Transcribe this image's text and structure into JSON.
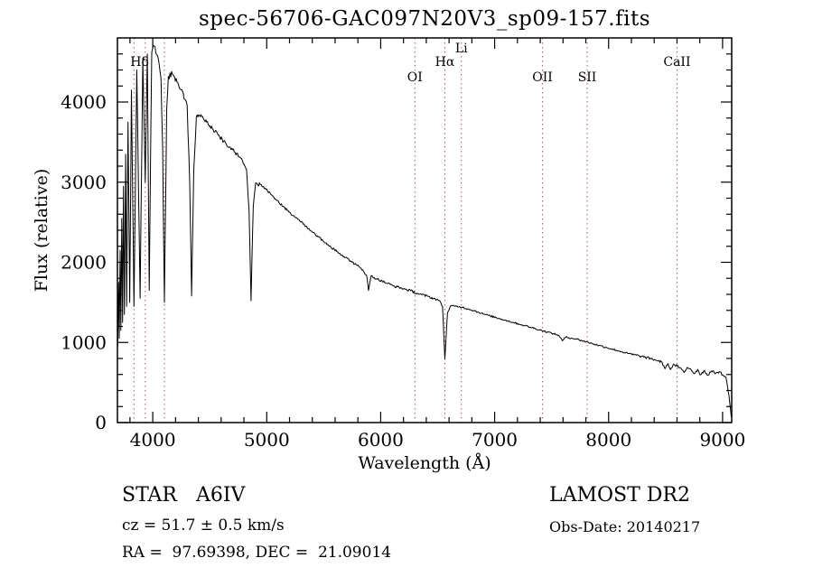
{
  "title": "spec-56706-GAC097N20V3_sp09-157.fits",
  "axes": {
    "xlabel": "Wavelength (Å)",
    "ylabel": "Flux (relative)"
  },
  "footer": {
    "classification": "STAR   A6IV",
    "cz": "cz = 51.7 ± 0.5 km/s",
    "ra_dec": "RA =  97.69398, DEC =  21.09014",
    "survey": "LAMOST DR2",
    "obs_date": "Obs-Date: 20140217"
  },
  "chart_data": {
    "type": "line",
    "title": "spec-56706-GAC097N20V3_sp09-157.fits",
    "xlabel": "Wavelength (Å)",
    "ylabel": "Flux (relative)",
    "xlim": [
      3690,
      9080
    ],
    "ylim": [
      0,
      4800
    ],
    "x_ticks": [
      4000,
      5000,
      6000,
      7000,
      8000,
      9000
    ],
    "y_ticks": [
      0,
      1000,
      2000,
      3000,
      4000
    ],
    "x_minor_step": 200,
    "y_minor_step": 200,
    "grid": false,
    "legend": "none",
    "line_color": "#000000",
    "marker_color": "#a05a5a",
    "marker_label_color": "#1a1a1a",
    "line_markers": [
      {
        "wavelength": 3835,
        "label": "",
        "row": 1
      },
      {
        "wavelength": 3934,
        "label": "",
        "row": 1
      },
      {
        "wavelength": 4102,
        "label": "Hδ",
        "label_wavelength": 3885,
        "row": 1
      },
      {
        "wavelength": 6300,
        "label": "OI",
        "row": 2
      },
      {
        "wavelength": 6563,
        "label": "Hα",
        "row": 1
      },
      {
        "wavelength": 6708,
        "label": "Li",
        "row": 0
      },
      {
        "wavelength": 7420,
        "label": "OII",
        "row": 2
      },
      {
        "wavelength": 7812,
        "label": "SII",
        "row": 2
      },
      {
        "wavelength": 8600,
        "label": "CaII",
        "row": 1
      }
    ],
    "noise_profile": [
      [
        4350,
        50
      ],
      [
        5000,
        24
      ],
      [
        6500,
        15
      ],
      [
        8200,
        11
      ],
      [
        9100,
        15
      ]
    ],
    "series": [
      {
        "name": "flux",
        "points": [
          [
            3692,
            950
          ],
          [
            3700,
            1750
          ],
          [
            3706,
            1050
          ],
          [
            3714,
            2150
          ],
          [
            3720,
            1150
          ],
          [
            3728,
            2550
          ],
          [
            3735,
            1250
          ],
          [
            3743,
            2950
          ],
          [
            3751,
            1350
          ],
          [
            3762,
            3350
          ],
          [
            3771,
            1450
          ],
          [
            3783,
            3750
          ],
          [
            3798,
            1500
          ],
          [
            3813,
            4150
          ],
          [
            3835,
            1450
          ],
          [
            3860,
            4400
          ],
          [
            3889,
            1550
          ],
          [
            3913,
            4550
          ],
          [
            3934,
            3000
          ],
          [
            3952,
            4600
          ],
          [
            3969,
            1650
          ],
          [
            3991,
            4620
          ],
          [
            4012,
            4700
          ],
          [
            4042,
            4580
          ],
          [
            4072,
            4300
          ],
          [
            4087,
            3400
          ],
          [
            4102,
            1500
          ],
          [
            4122,
            3900
          ],
          [
            4137,
            4320
          ],
          [
            4172,
            4350
          ],
          [
            4212,
            4250
          ],
          [
            4262,
            4130
          ],
          [
            4302,
            3960
          ],
          [
            4324,
            3000
          ],
          [
            4341,
            1580
          ],
          [
            4360,
            3150
          ],
          [
            4383,
            3820
          ],
          [
            4423,
            3840
          ],
          [
            4473,
            3750
          ],
          [
            4523,
            3670
          ],
          [
            4573,
            3590
          ],
          [
            4623,
            3510
          ],
          [
            4673,
            3440
          ],
          [
            4723,
            3370
          ],
          [
            4773,
            3300
          ],
          [
            4823,
            3160
          ],
          [
            4845,
            2650
          ],
          [
            4862,
            1520
          ],
          [
            4882,
            2700
          ],
          [
            4903,
            2990
          ],
          [
            4943,
            2970
          ],
          [
            4993,
            2910
          ],
          [
            5043,
            2840
          ],
          [
            5093,
            2770
          ],
          [
            5143,
            2700
          ],
          [
            5193,
            2630
          ],
          [
            5243,
            2570
          ],
          [
            5293,
            2510
          ],
          [
            5343,
            2450
          ],
          [
            5393,
            2390
          ],
          [
            5443,
            2330
          ],
          [
            5493,
            2270
          ],
          [
            5543,
            2210
          ],
          [
            5593,
            2160
          ],
          [
            5643,
            2110
          ],
          [
            5693,
            2060
          ],
          [
            5743,
            2010
          ],
          [
            5793,
            1960
          ],
          [
            5843,
            1905
          ],
          [
            5876,
            1840
          ],
          [
            5893,
            1650
          ],
          [
            5916,
            1830
          ],
          [
            5963,
            1795
          ],
          [
            6013,
            1765
          ],
          [
            6063,
            1735
          ],
          [
            6113,
            1705
          ],
          [
            6163,
            1685
          ],
          [
            6213,
            1665
          ],
          [
            6263,
            1645
          ],
          [
            6313,
            1615
          ],
          [
            6363,
            1595
          ],
          [
            6413,
            1575
          ],
          [
            6463,
            1550
          ],
          [
            6513,
            1525
          ],
          [
            6543,
            1450
          ],
          [
            6563,
            790
          ],
          [
            6586,
            1370
          ],
          [
            6613,
            1455
          ],
          [
            6663,
            1450
          ],
          [
            6713,
            1440
          ],
          [
            6763,
            1420
          ],
          [
            6813,
            1400
          ],
          [
            6863,
            1375
          ],
          [
            6913,
            1350
          ],
          [
            6963,
            1330
          ],
          [
            7013,
            1310
          ],
          [
            7063,
            1290
          ],
          [
            7113,
            1270
          ],
          [
            7163,
            1250
          ],
          [
            7213,
            1230
          ],
          [
            7263,
            1210
          ],
          [
            7313,
            1190
          ],
          [
            7363,
            1170
          ],
          [
            7413,
            1150
          ],
          [
            7463,
            1130
          ],
          [
            7513,
            1110
          ],
          [
            7563,
            1090
          ],
          [
            7594,
            1020
          ],
          [
            7623,
            1065
          ],
          [
            7673,
            1055
          ],
          [
            7723,
            1040
          ],
          [
            7773,
            1020
          ],
          [
            7823,
            1000
          ],
          [
            7873,
            980
          ],
          [
            7923,
            960
          ],
          [
            7973,
            940
          ],
          [
            8023,
            920
          ],
          [
            8073,
            900
          ],
          [
            8123,
            880
          ],
          [
            8173,
            862
          ],
          [
            8223,
            846
          ],
          [
            8273,
            830
          ],
          [
            8323,
            814
          ],
          [
            8373,
            796
          ],
          [
            8423,
            776
          ],
          [
            8463,
            756
          ],
          [
            8498,
            675
          ],
          [
            8521,
            735
          ],
          [
            8543,
            660
          ],
          [
            8566,
            722
          ],
          [
            8601,
            705
          ],
          [
            8622,
            685
          ],
          [
            8663,
            625
          ],
          [
            8691,
            688
          ],
          [
            8721,
            668
          ],
          [
            8751,
            610
          ],
          [
            8781,
            662
          ],
          [
            8807,
            595
          ],
          [
            8841,
            652
          ],
          [
            8866,
            590
          ],
          [
            8901,
            642
          ],
          [
            8941,
            618
          ],
          [
            8971,
            636
          ],
          [
            9001,
            595
          ],
          [
            9031,
            555
          ],
          [
            9056,
            340
          ],
          [
            9076,
            70
          ]
        ]
      }
    ]
  }
}
